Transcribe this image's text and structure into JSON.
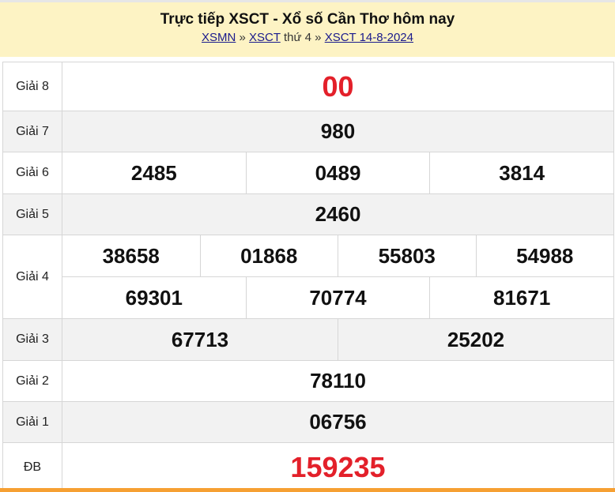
{
  "header": {
    "title": "Trực tiếp XSCT - Xổ số Cần Thơ hôm nay",
    "breadcrumb": [
      {
        "label": "XSMN"
      },
      {
        "sep": "»"
      },
      {
        "label": "XSCT"
      },
      {
        "text": "thứ 4"
      },
      {
        "sep2": "»"
      },
      {
        "label": "XSCT 14-8-2024"
      }
    ]
  },
  "results": {
    "g8": {
      "label": "Giải 8",
      "numbers": [
        "00"
      ]
    },
    "g7": {
      "label": "Giải 7",
      "numbers": [
        "980"
      ]
    },
    "g6": {
      "label": "Giải 6",
      "numbers": [
        "2485",
        "0489",
        "3814"
      ]
    },
    "g5": {
      "label": "Giải 5",
      "numbers": [
        "2460"
      ]
    },
    "g4": {
      "label": "Giải 4",
      "numbers": [
        "38658",
        "01868",
        "55803",
        "54988",
        "69301",
        "70774",
        "81671"
      ]
    },
    "g3": {
      "label": "Giải 3",
      "numbers": [
        "67713",
        "25202"
      ]
    },
    "g2": {
      "label": "Giải 2",
      "numbers": [
        "78110"
      ]
    },
    "g1": {
      "label": "Giải 1",
      "numbers": [
        "06756"
      ]
    },
    "db": {
      "label": "ĐB",
      "numbers": [
        "159235"
      ]
    }
  },
  "colors": {
    "header_bg": "#fdf3c4",
    "highlight_red": "#e3202a",
    "accent_orange": "#f6a033",
    "row_alt": "#f2f2f2"
  }
}
